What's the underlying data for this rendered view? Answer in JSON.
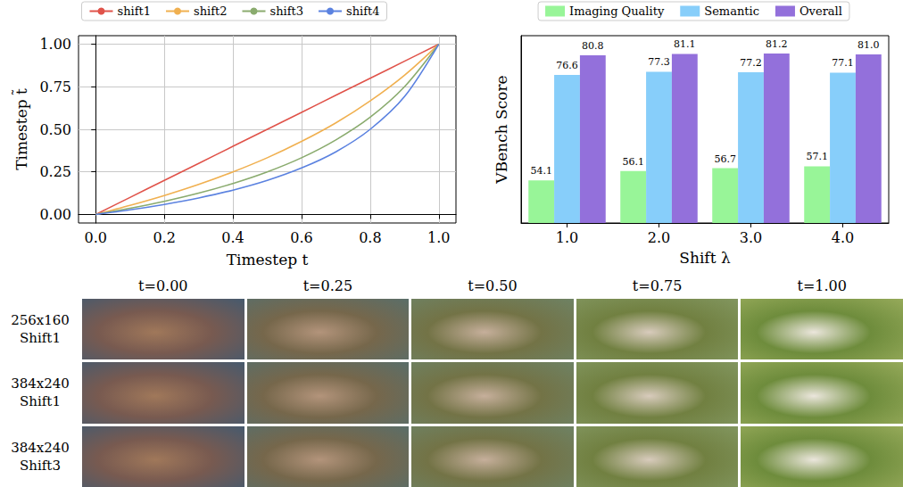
{
  "chart_data": [
    {
      "type": "line",
      "x_label": "Timestep t",
      "y_label": "Timestep t̃",
      "x": [
        0,
        0.1,
        0.2,
        0.3,
        0.4,
        0.5,
        0.6,
        0.7,
        0.8,
        0.9,
        1.0
      ],
      "series": [
        {
          "name": "shift1",
          "color": "#e0534a",
          "values": [
            0,
            0.1,
            0.2,
            0.3,
            0.4,
            0.5,
            0.6,
            0.7,
            0.8,
            0.9,
            1.0
          ]
        },
        {
          "name": "shift2",
          "color": "#f0b050",
          "values": [
            0,
            0.053,
            0.111,
            0.176,
            0.25,
            0.333,
            0.429,
            0.538,
            0.667,
            0.818,
            1.0
          ]
        },
        {
          "name": "shift3",
          "color": "#8aab6e",
          "values": [
            0,
            0.036,
            0.077,
            0.125,
            0.182,
            0.25,
            0.333,
            0.438,
            0.571,
            0.75,
            1.0
          ]
        },
        {
          "name": "shift4",
          "color": "#5b82e0",
          "values": [
            0,
            0.027,
            0.059,
            0.097,
            0.143,
            0.2,
            0.273,
            0.368,
            0.5,
            0.692,
            1.0
          ]
        }
      ],
      "xlim": [
        -0.05,
        1.05
      ],
      "xticks": [
        {
          "value": 0,
          "label": "0.0"
        },
        {
          "value": 0.2,
          "label": "0.2"
        },
        {
          "value": 0.4,
          "label": "0.4"
        },
        {
          "value": 0.6,
          "label": "0.6"
        },
        {
          "value": 0.8,
          "label": "0.8"
        },
        {
          "value": 1.0,
          "label": "1.0"
        }
      ],
      "ylim": [
        -0.05,
        1.05
      ],
      "yticks": [
        {
          "value": 0,
          "label": "0.00"
        },
        {
          "value": 0.25,
          "label": "0.25"
        },
        {
          "value": 0.5,
          "label": "0.50"
        },
        {
          "value": 0.75,
          "label": "0.75"
        },
        {
          "value": 1.0,
          "label": "1.00"
        }
      ],
      "grid": true,
      "legend": "top"
    },
    {
      "type": "bar",
      "x_label": "Shift λ",
      "y_label": "VBench Score",
      "categories": [
        "1.0",
        "2.0",
        "3.0",
        "4.0"
      ],
      "series": [
        {
          "name": "Imaging Quality",
          "color": "#98f598",
          "values": [
            54.1,
            56.1,
            56.7,
            57.1
          ]
        },
        {
          "name": "Semantic",
          "color": "#87cefa",
          "values": [
            76.6,
            77.3,
            77.2,
            77.1
          ]
        },
        {
          "name": "Overall",
          "color": "#9370db",
          "values": [
            80.8,
            81.1,
            81.2,
            81.0
          ],
          "value_labels": [
            "80.8",
            "81.1",
            "81.2",
            "81.0"
          ]
        }
      ],
      "ylim": [
        45,
        85
      ],
      "tick_labels": "x",
      "data_labels": true,
      "grid": false,
      "legend": "top"
    }
  ],
  "image_grid": {
    "columns": [
      "t=0.00",
      "t=0.25",
      "t=0.50",
      "t=0.75",
      "t=1.00"
    ],
    "rows": [
      {
        "resolution": "256x160",
        "shift": "Shift1"
      },
      {
        "resolution": "384x240",
        "shift": "Shift1"
      },
      {
        "resolution": "384x240",
        "shift": "Shift3"
      }
    ]
  }
}
